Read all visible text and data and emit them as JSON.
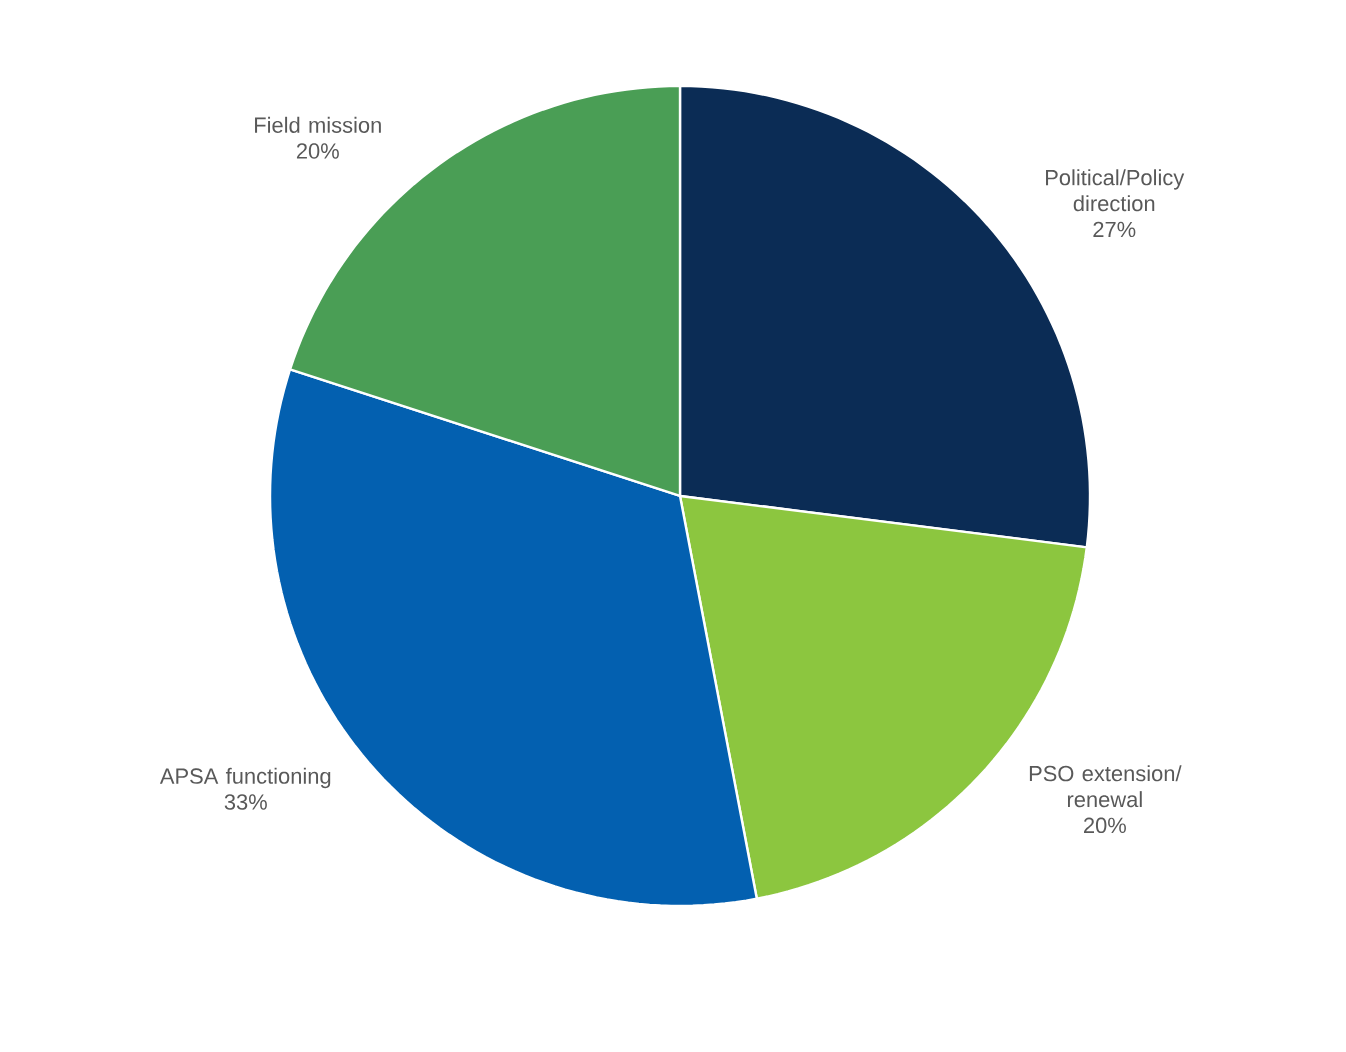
{
  "chart_data": {
    "type": "pie",
    "categories": [
      "Political/Policy direction",
      "PSO extension/ renewal",
      "APSA functioning",
      "Field mission"
    ],
    "values": [
      27,
      20,
      33,
      20
    ],
    "value_labels": [
      "27%",
      "20%",
      "33%",
      "20%"
    ],
    "colors": [
      "#0b2c55",
      "#8cc63f",
      "#0360b0",
      "#4a9e55"
    ]
  }
}
